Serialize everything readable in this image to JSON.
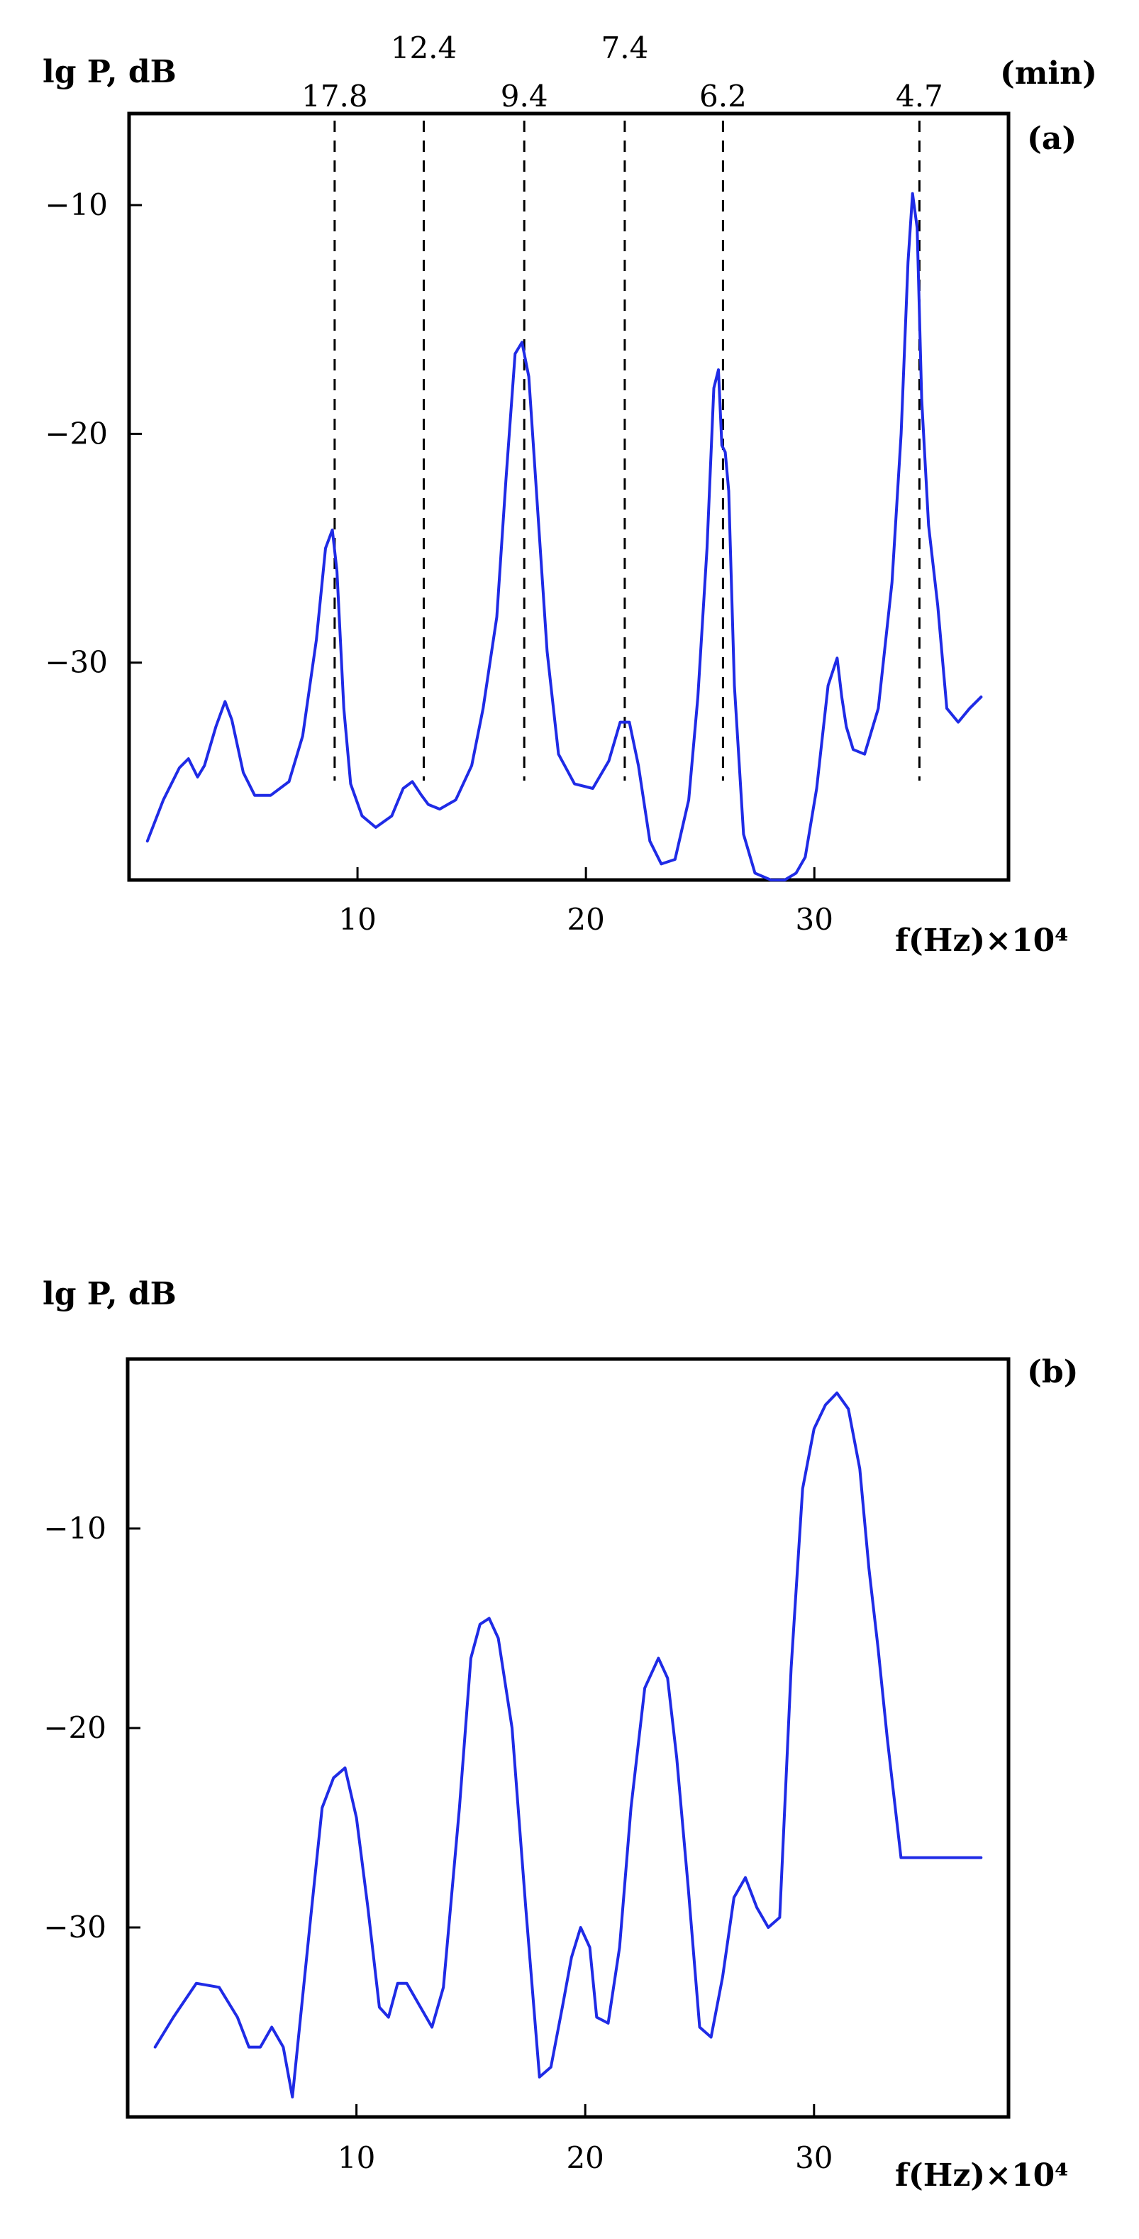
{
  "chart_data": [
    {
      "type": "line",
      "panel_label": "(a)",
      "ylabel": "lg P, dB",
      "xlabel": "f(Hz)×10⁴",
      "top_axis_unit": "(min)",
      "xlim": [
        0,
        38.5
      ],
      "ylim": [
        -39.5,
        -6
      ],
      "xticks": [
        10,
        20,
        30
      ],
      "yticks": [
        -10,
        -20,
        -30
      ],
      "xtick_labels": [
        "10",
        "20",
        "30"
      ],
      "ytick_labels": [
        "−10",
        "−20",
        "−30"
      ],
      "period_markers": [
        {
          "x": 9.0,
          "label": "17.8"
        },
        {
          "x": 12.9,
          "label": "12.4"
        },
        {
          "x": 17.3,
          "label": "9.4"
        },
        {
          "x": 21.7,
          "label": "7.4"
        },
        {
          "x": 26.0,
          "label": "6.2"
        },
        {
          "x": 34.6,
          "label": "4.7"
        }
      ],
      "series": [
        {
          "x": [
            0.8,
            1.5,
            2.2,
            2.6,
            3.0,
            3.3,
            3.8,
            4.2,
            4.5,
            5.0,
            5.5,
            6.2,
            7.0,
            7.6,
            8.2,
            8.6,
            8.9,
            9.1,
            9.4,
            9.7,
            10.2,
            10.8,
            11.5,
            12.0,
            12.4,
            12.8,
            13.1,
            13.6,
            14.3,
            15.0,
            15.5,
            16.1,
            16.5,
            16.9,
            17.2,
            17.5,
            17.9,
            18.3,
            18.8,
            19.5,
            20.3,
            21.0,
            21.5,
            21.9,
            22.3,
            22.8,
            23.3,
            23.9,
            24.5,
            24.9,
            25.3,
            25.6,
            25.8,
            25.95,
            26.1,
            26.25,
            26.5,
            26.9,
            27.4,
            28.1,
            28.7,
            29.2,
            29.6,
            30.1,
            30.6,
            31.0,
            31.2,
            31.4,
            31.7,
            32.2,
            32.8,
            33.4,
            33.8,
            34.1,
            34.3,
            34.5,
            34.7,
            35.0,
            35.4,
            35.8,
            36.3,
            36.8,
            37.3
          ],
          "y": [
            -37.8,
            -36.0,
            -34.6,
            -34.2,
            -35.0,
            -34.5,
            -32.8,
            -31.7,
            -32.5,
            -34.8,
            -35.8,
            -35.8,
            -35.2,
            -33.2,
            -29.0,
            -25.0,
            -24.2,
            -26.0,
            -32.0,
            -35.3,
            -36.7,
            -37.2,
            -36.7,
            -35.5,
            -35.2,
            -35.8,
            -36.2,
            -36.4,
            -36.0,
            -34.5,
            -32.0,
            -28.0,
            -22.0,
            -16.5,
            -16.0,
            -17.5,
            -23.5,
            -29.5,
            -34.0,
            -35.3,
            -35.5,
            -34.3,
            -32.6,
            -32.6,
            -34.5,
            -37.8,
            -38.8,
            -38.6,
            -36.0,
            -31.5,
            -25.0,
            -18.0,
            -17.2,
            -20.5,
            -20.8,
            -22.5,
            -31.0,
            -37.5,
            -39.2,
            -39.5,
            -39.5,
            -39.2,
            -38.5,
            -35.5,
            -31.0,
            -29.8,
            -31.5,
            -32.8,
            -33.8,
            -34.0,
            -32.0,
            -26.5,
            -20.0,
            -12.5,
            -9.5,
            -11.0,
            -18.5,
            -24.0,
            -27.5,
            -32.0,
            -32.6,
            -32.0,
            -31.5
          ]
        }
      ]
    },
    {
      "type": "line",
      "panel_label": "(b)",
      "ylabel": "lg P, dB",
      "xlabel": "f(Hz)×10⁴",
      "xlim": [
        0,
        38.5
      ],
      "ylim": [
        -39.5,
        -1.5
      ],
      "xticks": [
        10,
        20,
        30
      ],
      "yticks": [
        -10,
        -20,
        -30
      ],
      "xtick_labels": [
        "10",
        "20",
        "30"
      ],
      "ytick_labels": [
        "−10",
        "−20",
        "−30"
      ],
      "series": [
        {
          "x": [
            1.2,
            2.0,
            3.0,
            4.0,
            4.8,
            5.3,
            5.8,
            6.3,
            6.8,
            7.2,
            7.6,
            8.0,
            8.5,
            9.0,
            9.5,
            10.0,
            10.5,
            11.0,
            11.4,
            11.8,
            12.2,
            12.8,
            13.3,
            13.8,
            14.5,
            15.0,
            15.4,
            15.8,
            16.2,
            16.8,
            17.4,
            18.0,
            18.5,
            19.0,
            19.4,
            19.8,
            20.2,
            20.5,
            21.0,
            21.5,
            22.0,
            22.6,
            23.2,
            23.6,
            24.0,
            24.5,
            25.0,
            25.5,
            26.0,
            26.5,
            27.0,
            27.5,
            28.0,
            28.5,
            29.0,
            29.5,
            30.0,
            30.5,
            31.0,
            31.5,
            32.0,
            32.4,
            32.8,
            33.2,
            33.8,
            34.5,
            35.0,
            35.5,
            36.0,
            36.5,
            37.0,
            37.3
          ],
          "y": [
            -36.0,
            -34.5,
            -32.8,
            -33.0,
            -34.5,
            -36.0,
            -36.0,
            -35.0,
            -36.0,
            -38.5,
            -34.0,
            -29.5,
            -24.0,
            -22.5,
            -22.0,
            -24.5,
            -29.0,
            -34.0,
            -34.5,
            -32.8,
            -32.8,
            -34.0,
            -35.0,
            -33.0,
            -24.0,
            -16.5,
            -14.8,
            -14.5,
            -15.5,
            -20.0,
            -29.0,
            -37.5,
            -37.0,
            -34.0,
            -31.5,
            -30.0,
            -31.0,
            -34.5,
            -34.8,
            -31.0,
            -24.0,
            -18.0,
            -16.5,
            -17.5,
            -21.5,
            -28.0,
            -35.0,
            -35.5,
            -32.5,
            -28.5,
            -27.5,
            -29.0,
            -30.0,
            -29.5,
            -17.0,
            -8.0,
            -5.0,
            -3.8,
            -3.2,
            -4.0,
            -7.0,
            -12.0,
            -16.0,
            -20.5,
            -26.5,
            -26.5,
            -26.5,
            -26.5,
            -26.5,
            -26.5,
            -26.5,
            -26.5
          ]
        }
      ]
    }
  ]
}
